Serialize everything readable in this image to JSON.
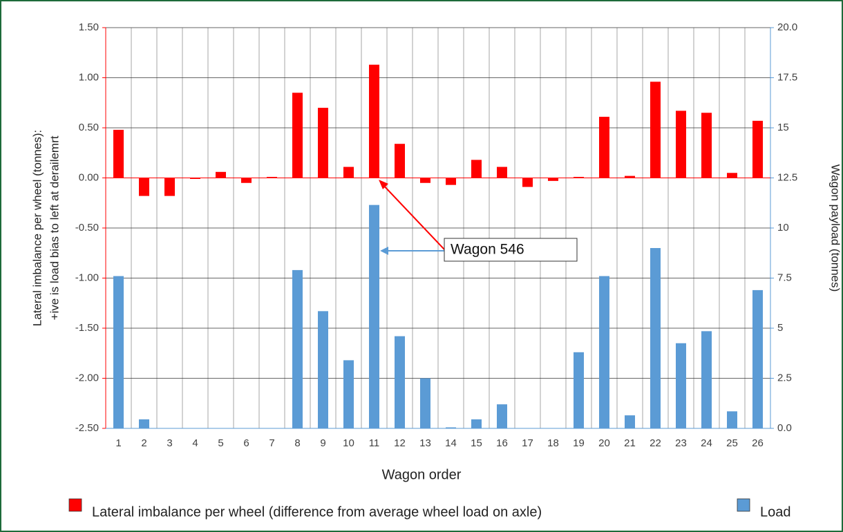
{
  "chart_data": {
    "type": "bar",
    "xlabel": "Wagon order",
    "ylabel": [
      "Lateral imbalance per wheel (tonnes):",
      "+ive is load bias to left at derailemrt"
    ],
    "y2label": "Wagon payload (tonnes)",
    "categories": [
      "1",
      "2",
      "3",
      "4",
      "5",
      "6",
      "7",
      "8",
      "9",
      "10",
      "11",
      "12",
      "13",
      "14",
      "15",
      "16",
      "17",
      "18",
      "19",
      "20",
      "21",
      "22",
      "23",
      "24",
      "25",
      "26"
    ],
    "series": [
      {
        "name": "Lateral imbalance per wheel (difference from average wheel load on axle)",
        "color": "#ff0000",
        "values": [
          0.48,
          -0.18,
          -0.18,
          -0.01,
          0.06,
          -0.05,
          0.01,
          0.85,
          0.7,
          0.11,
          1.13,
          0.34,
          -0.05,
          -0.07,
          0.18,
          0.11,
          -0.09,
          -0.03,
          0.01,
          0.61,
          0.02,
          0.96,
          0.67,
          0.65,
          0.05,
          0.57
        ]
      },
      {
        "name": "Load",
        "color": "#5b9bd5",
        "axis": "y2",
        "values": [
          7.6,
          0.45,
          0,
          0,
          0,
          0,
          0,
          7.9,
          5.85,
          3.4,
          11.15,
          4.6,
          2.5,
          0.05,
          0.45,
          1.2,
          0,
          0,
          3.8,
          7.6,
          0.65,
          9.0,
          4.25,
          4.85,
          0.85,
          6.9
        ]
      }
    ],
    "ylim": [
      -2.5,
      1.5
    ],
    "yticks": [
      {
        "value": -2.5,
        "label": "-2.50"
      },
      {
        "value": -2,
        "label": "-2.00"
      },
      {
        "value": -1.5,
        "label": "-1.50"
      },
      {
        "value": -1,
        "label": "-1.00"
      },
      {
        "value": -0.5,
        "label": "-0.50"
      },
      {
        "value": 0,
        "label": "0.00"
      },
      {
        "value": 0.5,
        "label": "0.50"
      },
      {
        "value": 1,
        "label": "1.00"
      },
      {
        "value": 1.5,
        "label": "1.50"
      }
    ],
    "y2lim": [
      0,
      20
    ],
    "y2ticks": [
      {
        "value": 0,
        "label": "0.0"
      },
      2.5,
      5,
      7.5,
      10,
      12.5,
      15,
      17.5,
      {
        "value": 20,
        "label": "20.0"
      }
    ],
    "grid": true,
    "legend": "bottom",
    "annotations": [
      {
        "text": "Wagon 546"
      }
    ]
  }
}
